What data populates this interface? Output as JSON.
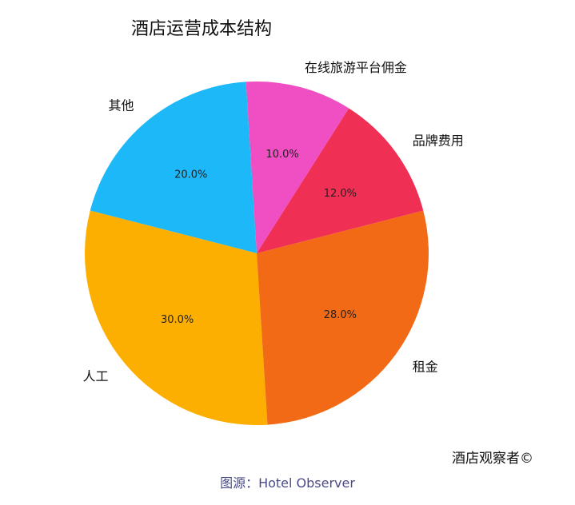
{
  "chart_data": {
    "type": "pie",
    "title": "酒店运营成本结构",
    "slices": [
      {
        "label": "在线旅游平台佣金",
        "value": 10.0,
        "pct_label": "10.0%",
        "color": "#f04fc3"
      },
      {
        "label": "其他",
        "value": 20.0,
        "pct_label": "20.0%",
        "color": "#1db8f8"
      },
      {
        "label": "人工",
        "value": 30.0,
        "pct_label": "30.0%",
        "color": "#fdaf00"
      },
      {
        "label": "租金",
        "value": 28.0,
        "pct_label": "28.0%",
        "color": "#f26a16"
      },
      {
        "label": "品牌费用",
        "value": 12.0,
        "pct_label": "12.0%",
        "color": "#f02f54"
      }
    ]
  },
  "watermark": "酒店观察者©",
  "source": "图源：Hotel Observer"
}
